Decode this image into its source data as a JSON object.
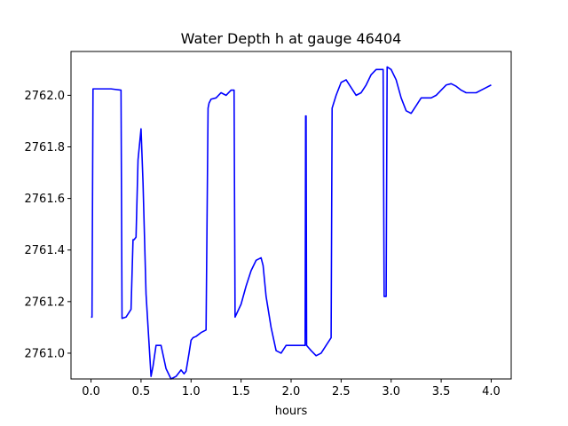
{
  "chart_data": {
    "type": "line",
    "title": "Water Depth h at gauge 46404",
    "xlabel": "hours",
    "ylabel": "",
    "xlim": [
      -0.2,
      4.2
    ],
    "ylim": [
      2760.9,
      2762.17
    ],
    "xticks": [
      0.0,
      0.5,
      1.0,
      1.5,
      2.0,
      2.5,
      3.0,
      3.5,
      4.0
    ],
    "xtick_labels": [
      "0.0",
      "0.5",
      "1.0",
      "1.5",
      "2.0",
      "2.5",
      "3.0",
      "3.5",
      "4.0"
    ],
    "yticks": [
      2761.0,
      2761.2,
      2761.4,
      2761.6,
      2761.8,
      2762.0
    ],
    "ytick_labels": [
      "2761.0",
      "2761.2",
      "2761.4",
      "2761.6",
      "2761.8",
      "2762.0"
    ],
    "grid": false,
    "legend": "none",
    "colors": {
      "line": "#0000ff",
      "axes": "#000000",
      "background": "#ffffff"
    },
    "series": [
      {
        "x": [
          0.0,
          0.01,
          0.02,
          0.2,
          0.3,
          0.31,
          0.35,
          0.4,
          0.42,
          0.43,
          0.45,
          0.47,
          0.5,
          0.52,
          0.55,
          0.6,
          0.62,
          0.65,
          0.7,
          0.75,
          0.8,
          0.85,
          0.9,
          0.93,
          0.95,
          0.98,
          1.0,
          1.02,
          1.05,
          1.1,
          1.15,
          1.17,
          1.18,
          1.2,
          1.25,
          1.3,
          1.35,
          1.4,
          1.43,
          1.44,
          1.5,
          1.55,
          1.6,
          1.65,
          1.7,
          1.72,
          1.75,
          1.8,
          1.85,
          1.9,
          1.95,
          2.0,
          2.05,
          2.1,
          2.14,
          2.145,
          2.15,
          2.155,
          2.2,
          2.25,
          2.3,
          2.35,
          2.4,
          2.41,
          2.45,
          2.5,
          2.55,
          2.6,
          2.65,
          2.7,
          2.75,
          2.8,
          2.85,
          2.9,
          2.92,
          2.93,
          2.95,
          2.96,
          3.0,
          3.05,
          3.1,
          3.15,
          3.2,
          3.25,
          3.3,
          3.35,
          3.4,
          3.45,
          3.5,
          3.55,
          3.6,
          3.65,
          3.7,
          3.75,
          3.8,
          3.85,
          3.9,
          3.95,
          4.0
        ],
        "values": [
          2761.14,
          2761.14,
          2762.025,
          2762.025,
          2762.02,
          2761.135,
          2761.14,
          2761.17,
          2761.44,
          2761.44,
          2761.45,
          2761.75,
          2761.87,
          2761.66,
          2761.23,
          2760.91,
          2760.95,
          2761.03,
          2761.03,
          2760.94,
          2760.9,
          2760.91,
          2760.935,
          2760.92,
          2760.93,
          2761.0,
          2761.05,
          2761.06,
          2761.065,
          2761.08,
          2761.09,
          2761.95,
          2761.97,
          2761.985,
          2761.99,
          2762.01,
          2762.0,
          2762.02,
          2762.02,
          2761.14,
          2761.19,
          2761.26,
          2761.32,
          2761.36,
          2761.37,
          2761.34,
          2761.22,
          2761.1,
          2761.01,
          2761.0,
          2761.03,
          2761.03,
          2761.03,
          2761.03,
          2761.03,
          2761.92,
          2761.92,
          2761.03,
          2761.01,
          2760.99,
          2761.0,
          2761.03,
          2761.06,
          2761.95,
          2762.0,
          2762.05,
          2762.06,
          2762.03,
          2762.0,
          2762.01,
          2762.04,
          2762.08,
          2762.1,
          2762.1,
          2762.1,
          2761.22,
          2761.22,
          2762.11,
          2762.1,
          2762.06,
          2761.99,
          2761.94,
          2761.93,
          2761.96,
          2761.99,
          2761.99,
          2761.99,
          2762.0,
          2762.02,
          2762.04,
          2762.045,
          2762.035,
          2762.02,
          2762.01,
          2762.01,
          2762.01,
          2762.02,
          2762.03,
          2762.04
        ]
      }
    ]
  }
}
